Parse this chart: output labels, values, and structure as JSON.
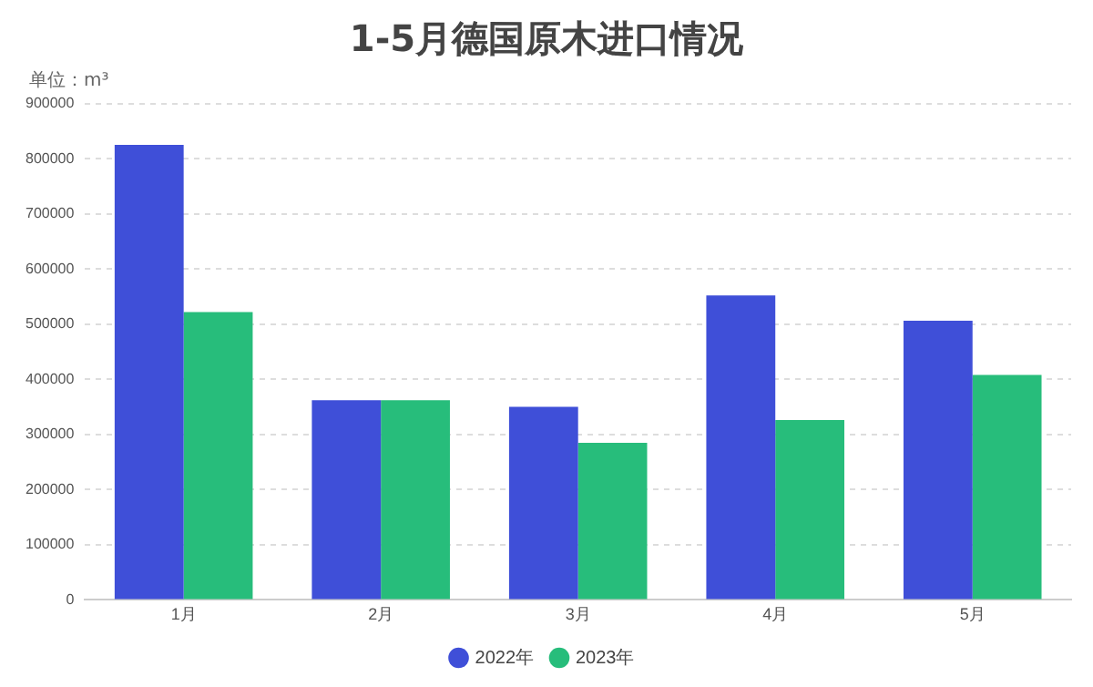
{
  "chart_data": {
    "type": "bar",
    "title": "1-5月德国原木进口情况",
    "subtitle": "单位：m³",
    "categories": [
      "1月",
      "2月",
      "3月",
      "4月",
      "5月"
    ],
    "series": [
      {
        "name": "2022年",
        "color": "#3f4fd8",
        "values": [
          825000,
          362000,
          350000,
          552000,
          506000
        ]
      },
      {
        "name": "2023年",
        "color": "#27bd7b",
        "values": [
          522000,
          362000,
          285000,
          326000,
          408000
        ]
      }
    ],
    "ylim": [
      0,
      900000
    ],
    "yticks": [
      0,
      100000,
      200000,
      300000,
      400000,
      500000,
      600000,
      700000,
      800000,
      900000
    ],
    "grid": "y",
    "legend": "bottom"
  }
}
